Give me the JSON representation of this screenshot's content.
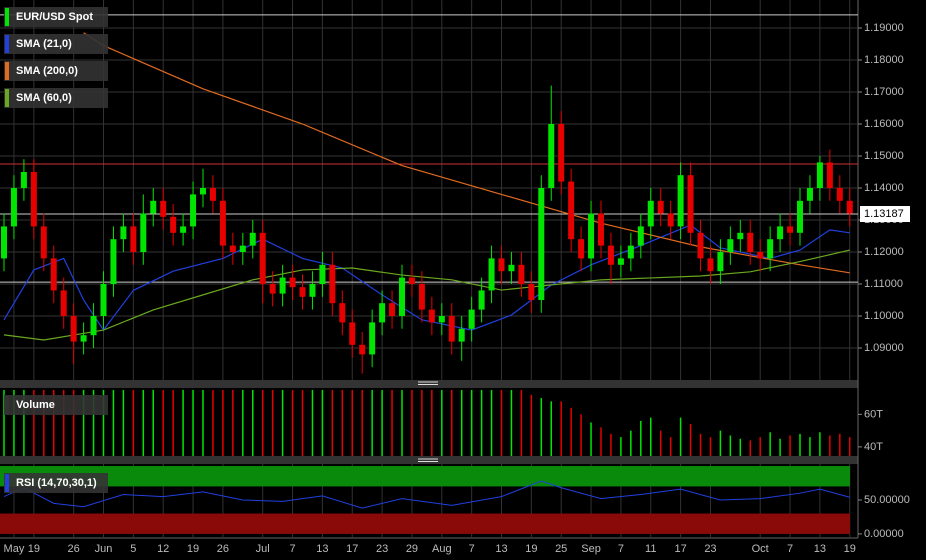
{
  "chart_data": {
    "type": "candlestick",
    "name": "EUR/USD Spot",
    "color_up": "#00e600",
    "color_down": "#e60000",
    "grid": true,
    "categories": [
      null,
      "May",
      null,
      "19",
      null,
      null,
      null,
      "26",
      null,
      null,
      "Jun",
      null,
      null,
      "5",
      null,
      null,
      "12",
      null,
      null,
      "19",
      null,
      null,
      "26",
      null,
      null,
      null,
      "Jul",
      null,
      null,
      "7",
      null,
      null,
      "13",
      null,
      null,
      "17",
      null,
      null,
      "23",
      null,
      null,
      "29",
      null,
      null,
      "Aug",
      null,
      null,
      "7",
      null,
      null,
      "13",
      null,
      null,
      "19",
      null,
      null,
      "25",
      null,
      null,
      "Sep",
      null,
      null,
      "7",
      null,
      null,
      "11",
      null,
      null,
      "17",
      null,
      null,
      "23",
      null,
      null,
      null,
      null,
      "Oct",
      null,
      null,
      "7",
      null,
      null,
      "13",
      null,
      null,
      "19"
    ],
    "open": [
      1.118,
      1.128,
      1.14,
      1.145,
      1.128,
      1.118,
      1.108,
      1.1,
      1.092,
      1.094,
      1.1,
      1.11,
      1.124,
      1.128,
      1.12,
      1.132,
      1.136,
      1.131,
      1.126,
      1.128,
      1.138,
      1.14,
      1.136,
      1.122,
      1.12,
      1.122,
      1.126,
      1.11,
      1.107,
      1.112,
      1.109,
      1.106,
      1.11,
      1.116,
      1.104,
      1.098,
      1.091,
      1.088,
      1.098,
      1.104,
      1.1,
      1.112,
      1.11,
      1.102,
      1.098,
      1.1,
      1.092,
      1.096,
      1.102,
      1.108,
      1.118,
      1.114,
      1.116,
      1.11,
      1.105,
      1.14,
      1.16,
      1.142,
      1.124,
      1.118,
      1.132,
      1.122,
      1.116,
      1.118,
      1.122,
      1.128,
      1.136,
      1.132,
      1.128,
      1.144,
      1.126,
      1.118,
      1.114,
      1.12,
      1.124,
      1.126,
      1.12,
      1.118,
      1.124,
      1.128,
      1.126,
      1.136,
      1.14,
      1.148,
      1.14,
      1.136
    ],
    "high": [
      1.132,
      1.144,
      1.149,
      1.149,
      1.132,
      1.122,
      1.112,
      1.104,
      1.098,
      1.104,
      1.114,
      1.128,
      1.132,
      1.132,
      1.138,
      1.14,
      1.14,
      1.135,
      1.132,
      1.142,
      1.146,
      1.144,
      1.14,
      1.126,
      1.126,
      1.13,
      1.13,
      1.114,
      1.116,
      1.116,
      1.113,
      1.114,
      1.12,
      1.12,
      1.108,
      1.102,
      1.095,
      1.102,
      1.108,
      1.108,
      1.116,
      1.116,
      1.114,
      1.106,
      1.104,
      1.104,
      1.1,
      1.106,
      1.112,
      1.122,
      1.122,
      1.12,
      1.12,
      1.114,
      1.144,
      1.172,
      1.164,
      1.146,
      1.128,
      1.136,
      1.136,
      1.126,
      1.122,
      1.126,
      1.132,
      1.14,
      1.14,
      1.136,
      1.148,
      1.148,
      1.13,
      1.122,
      1.124,
      1.128,
      1.13,
      1.13,
      1.124,
      1.128,
      1.132,
      1.132,
      1.14,
      1.144,
      1.15,
      1.152,
      1.144,
      1.14
    ],
    "low": [
      1.114,
      1.124,
      1.136,
      1.124,
      1.114,
      1.104,
      1.096,
      1.085,
      1.088,
      1.09,
      1.096,
      1.106,
      1.12,
      1.116,
      1.116,
      1.128,
      1.127,
      1.122,
      1.122,
      1.124,
      1.134,
      1.132,
      1.118,
      1.116,
      1.116,
      1.118,
      1.104,
      1.103,
      1.103,
      1.105,
      1.102,
      1.102,
      1.106,
      1.1,
      1.094,
      1.087,
      1.082,
      1.084,
      1.094,
      1.096,
      1.096,
      1.106,
      1.098,
      1.094,
      1.094,
      1.088,
      1.086,
      1.092,
      1.098,
      1.104,
      1.11,
      1.11,
      1.106,
      1.101,
      1.101,
      1.136,
      1.138,
      1.12,
      1.114,
      1.114,
      1.118,
      1.11,
      1.112,
      1.114,
      1.118,
      1.124,
      1.128,
      1.124,
      1.124,
      1.122,
      1.114,
      1.11,
      1.11,
      1.116,
      1.12,
      1.116,
      1.114,
      1.114,
      1.12,
      1.122,
      1.122,
      1.132,
      1.136,
      1.136,
      1.132,
      1.128
    ],
    "close": [
      1.128,
      1.14,
      1.145,
      1.128,
      1.118,
      1.108,
      1.1,
      1.092,
      1.094,
      1.1,
      1.11,
      1.124,
      1.128,
      1.12,
      1.132,
      1.136,
      1.131,
      1.126,
      1.128,
      1.138,
      1.14,
      1.136,
      1.122,
      1.12,
      1.122,
      1.126,
      1.11,
      1.107,
      1.112,
      1.109,
      1.106,
      1.11,
      1.116,
      1.104,
      1.098,
      1.091,
      1.088,
      1.098,
      1.104,
      1.1,
      1.112,
      1.11,
      1.102,
      1.098,
      1.1,
      1.092,
      1.096,
      1.102,
      1.108,
      1.118,
      1.114,
      1.116,
      1.11,
      1.105,
      1.14,
      1.16,
      1.142,
      1.124,
      1.118,
      1.132,
      1.122,
      1.116,
      1.118,
      1.122,
      1.128,
      1.136,
      1.132,
      1.128,
      1.144,
      1.126,
      1.118,
      1.114,
      1.12,
      1.124,
      1.126,
      1.12,
      1.118,
      1.124,
      1.128,
      1.126,
      1.136,
      1.14,
      1.148,
      1.14,
      1.136,
      1.132
    ],
    "ylim": [
      1.08,
      1.19875
    ],
    "yticks": [
      {
        "value": 1.09,
        "label": "1.09000"
      },
      {
        "value": 1.1,
        "label": "1.10000"
      },
      {
        "value": 1.11,
        "label": "1.11000"
      },
      {
        "value": 1.12,
        "label": "1.12000"
      },
      {
        "value": 1.13,
        "label": "1.13000"
      },
      {
        "value": 1.14,
        "label": "1.14000"
      },
      {
        "value": 1.15,
        "label": "1.15000"
      },
      {
        "value": 1.16,
        "label": "1.16000"
      },
      {
        "value": 1.17,
        "label": "1.17000"
      },
      {
        "value": 1.18,
        "label": "1.18000"
      },
      {
        "value": 1.19,
        "label": "1.19000"
      }
    ],
    "last_price": {
      "value": 1.13187,
      "label": "1.13187"
    },
    "reference_lines": [
      {
        "value": 1.1941,
        "color": "#cccccc"
      },
      {
        "value": 1.1475,
        "color": "#d03030"
      },
      {
        "value": 1.13187,
        "color": "#cccccc"
      },
      {
        "value": 1.1106,
        "color": "#cccccc"
      }
    ],
    "series": [
      {
        "name": "SMA (21,0)",
        "color": "#2040e0",
        "x": [
          0,
          3,
          6,
          8,
          10,
          13,
          17,
          22,
          26,
          30,
          34,
          38,
          42,
          47,
          51,
          55,
          59,
          64,
          69,
          72,
          77,
          80,
          83,
          85
        ],
        "values": [
          1.0988,
          1.1144,
          1.118,
          1.105,
          1.0956,
          1.108,
          1.114,
          1.118,
          1.124,
          1.118,
          1.115,
          1.1066,
          1.0988,
          1.0956,
          1.1003,
          1.1097,
          1.116,
          1.122,
          1.1284,
          1.1213,
          1.118,
          1.1206,
          1.1269,
          1.126
        ]
      },
      {
        "name": "SMA (200,0)",
        "color": "#e06a20",
        "x": [
          8,
          10,
          20,
          30,
          40,
          50,
          60,
          70,
          80,
          85
        ],
        "values": [
          1.1885,
          1.1845,
          1.171,
          1.16,
          1.147,
          1.138,
          1.129,
          1.1216,
          1.116,
          1.1135
        ]
      },
      {
        "name": "SMA (60,0)",
        "color": "#6aa820",
        "x": [
          0,
          4,
          10,
          15,
          20,
          25,
          30,
          35,
          40,
          45,
          50,
          55,
          60,
          65,
          70,
          75,
          80,
          85
        ],
        "values": [
          1.0941,
          1.0925,
          1.0956,
          1.1019,
          1.1066,
          1.1113,
          1.1144,
          1.115,
          1.1128,
          1.1113,
          1.1081,
          1.1097,
          1.1113,
          1.1119,
          1.1125,
          1.1138,
          1.117,
          1.1206
        ]
      }
    ],
    "volume": {
      "name": "Volume",
      "ylim": [
        34.4,
        76.2
      ],
      "yticks": [
        {
          "value": 60,
          "label": "60T"
        },
        {
          "value": 40,
          "label": "40T"
        }
      ],
      "values": [
        75,
        75,
        75,
        75,
        75,
        75,
        75,
        75,
        75,
        75,
        75,
        75,
        75,
        75,
        75,
        75,
        75,
        75,
        75,
        75,
        75,
        75,
        75,
        75,
        75,
        75,
        75,
        75,
        75,
        75,
        75,
        75,
        75,
        75,
        75,
        75,
        75,
        75,
        75,
        75,
        75,
        75,
        75,
        75,
        75,
        75,
        75,
        75,
        75,
        75,
        75,
        75,
        75,
        72,
        70,
        68,
        68,
        64,
        60,
        55,
        52,
        48,
        46,
        50,
        56,
        58,
        50,
        46,
        58,
        54,
        48,
        46,
        50,
        47,
        45,
        44,
        46,
        49,
        45,
        47,
        48,
        46,
        49,
        47,
        48,
        46
      ]
    },
    "rsi": {
      "name": "RSI (14,70,30,1)",
      "color": "#2040e0",
      "ylim": [
        -6,
        103
      ],
      "upper": 70,
      "lower": 30,
      "yticks": [
        {
          "value": 50,
          "label": "50.00000"
        },
        {
          "value": 0,
          "label": "0.00000"
        }
      ],
      "x": [
        0,
        2,
        5,
        8,
        12,
        16,
        20,
        24,
        28,
        32,
        36,
        40,
        45,
        50,
        54,
        56,
        60,
        64,
        68,
        72,
        76,
        80,
        82,
        85
      ],
      "values": [
        55,
        68,
        45,
        40,
        58,
        55,
        62,
        50,
        48,
        56,
        38,
        52,
        42,
        55,
        78,
        68,
        52,
        58,
        66,
        50,
        52,
        60,
        66,
        54
      ]
    }
  }
}
